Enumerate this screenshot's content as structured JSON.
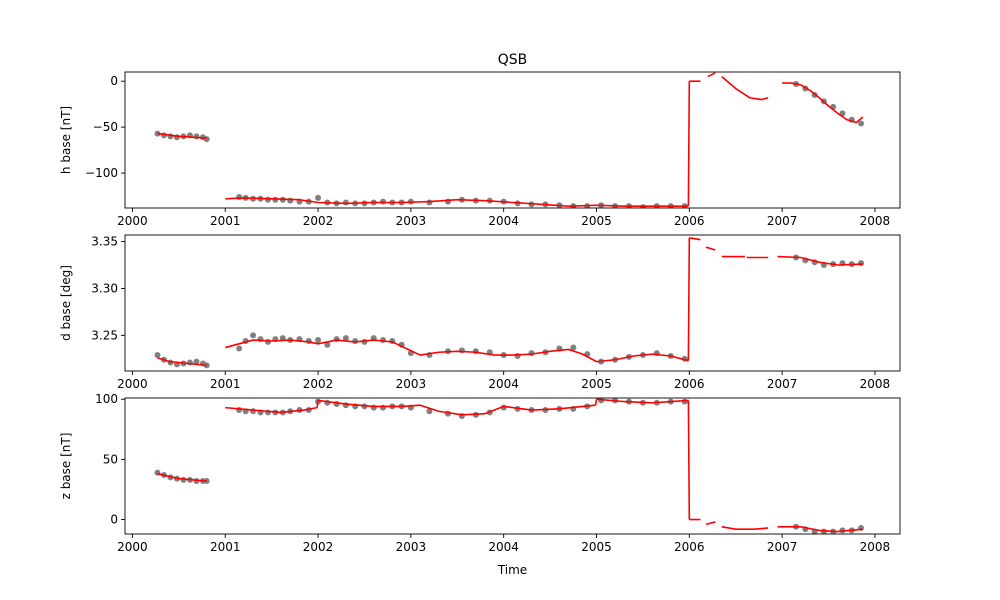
{
  "figure": {
    "title": "QSB",
    "x_axis_label": "Time"
  },
  "chart_data": [
    {
      "type": "scatter",
      "ylabel": "h base [nT]",
      "xlim": [
        1999.92,
        2008.27
      ],
      "ylim": [
        -138,
        10
      ],
      "x_ticks": [
        2000,
        2001,
        2002,
        2003,
        2004,
        2005,
        2006,
        2007,
        2008
      ],
      "x_tick_labels": [
        "2000",
        "2001",
        "2002",
        "2003",
        "2004",
        "2005",
        "2006",
        "2007",
        "2008"
      ],
      "y_ticks": [
        -100,
        -50,
        0
      ],
      "y_tick_labels": [
        "−100",
        "−50",
        "0"
      ],
      "grid": false,
      "series": [
        {
          "style": "points",
          "color": "#808080",
          "x": [
            2000.27,
            2000.34,
            2000.41,
            2000.48,
            2000.55,
            2000.62,
            2000.69,
            2000.76,
            2000.8,
            2001.15,
            2001.22,
            2001.3,
            2001.38,
            2001.46,
            2001.54,
            2001.62,
            2001.7,
            2001.8,
            2001.9,
            2002.0,
            2002.1,
            2002.2,
            2002.3,
            2002.4,
            2002.5,
            2002.6,
            2002.7,
            2002.8,
            2002.9,
            2003.0,
            2003.2,
            2003.4,
            2003.55,
            2003.7,
            2003.85,
            2004.0,
            2004.15,
            2004.3,
            2004.45,
            2004.6,
            2004.75,
            2004.9,
            2005.05,
            2005.2,
            2005.35,
            2005.5,
            2005.65,
            2005.8,
            2005.95,
            2007.15,
            2007.25,
            2007.35,
            2007.45,
            2007.55,
            2007.65,
            2007.75,
            2007.85
          ],
          "y": [
            -57,
            -59,
            -60,
            -61,
            -60,
            -59,
            -60,
            -61,
            -63,
            -126,
            -127,
            -128,
            -128,
            -129,
            -129,
            -129,
            -130,
            -131,
            -131,
            -127,
            -132,
            -133,
            -132,
            -133,
            -133,
            -132,
            -131,
            -132,
            -132,
            -131,
            -132,
            -131,
            -129,
            -130,
            -130,
            -131,
            -133,
            -134,
            -134,
            -135,
            -136,
            -136,
            -135,
            -136,
            -136,
            -137,
            -136,
            -136,
            -136,
            -3,
            -8,
            -15,
            -22,
            -28,
            -35,
            -42,
            -46
          ]
        },
        {
          "style": "line",
          "color": "#ff0000",
          "segments": [
            {
              "x": [
                2000.27,
                2000.5,
                2000.8
              ],
              "y": [
                -57,
                -60,
                -62
              ]
            },
            {
              "x": [
                2001.0,
                2001.2,
                2001.5,
                2001.8,
                2002.0,
                2002.3,
                2002.6,
                2002.9,
                2003.2,
                2003.5,
                2003.8,
                2004.1,
                2004.4,
                2004.7,
                2005.0,
                2005.3,
                2005.6,
                2005.99
              ],
              "y": [
                -128,
                -127,
                -128,
                -129,
                -132,
                -133,
                -132,
                -132,
                -131,
                -129,
                -130,
                -132,
                -134,
                -136,
                -135,
                -136,
                -136,
                -136
              ]
            },
            {
              "x": [
                2005.99,
                2006.0
              ],
              "y": [
                -136,
                0
              ]
            },
            {
              "x": [
                2006.0,
                2006.12
              ],
              "y": [
                0,
                0
              ]
            },
            {
              "x": [
                2006.2,
                2006.28
              ],
              "y": [
                5,
                9
              ]
            },
            {
              "x": [
                2006.35,
                2006.5,
                2006.65,
                2006.78,
                2006.85
              ],
              "y": [
                5,
                -8,
                -18,
                -20,
                -18
              ]
            },
            {
              "x": [
                2007.0,
                2007.1,
                2007.2,
                2007.3,
                2007.4,
                2007.5,
                2007.6,
                2007.7,
                2007.8,
                2007.87
              ],
              "y": [
                -2,
                -2,
                -4,
                -10,
                -18,
                -27,
                -35,
                -42,
                -45,
                -39
              ]
            }
          ]
        }
      ]
    },
    {
      "type": "scatter",
      "ylabel": "d base [deg]",
      "xlim": [
        1999.92,
        2008.27
      ],
      "ylim": [
        3.212,
        3.357
      ],
      "x_ticks": [
        2000,
        2001,
        2002,
        2003,
        2004,
        2005,
        2006,
        2007,
        2008
      ],
      "x_tick_labels": [
        "2000",
        "2001",
        "2002",
        "2003",
        "2004",
        "2005",
        "2006",
        "2007",
        "2008"
      ],
      "y_ticks": [
        3.25,
        3.3,
        3.35
      ],
      "y_tick_labels": [
        "3.25",
        "3.30",
        "3.35"
      ],
      "grid": false,
      "series": [
        {
          "style": "points",
          "color": "#808080",
          "x": [
            2000.27,
            2000.34,
            2000.41,
            2000.48,
            2000.55,
            2000.62,
            2000.69,
            2000.76,
            2000.8,
            2001.15,
            2001.22,
            2001.3,
            2001.38,
            2001.46,
            2001.54,
            2001.62,
            2001.7,
            2001.8,
            2001.9,
            2002.0,
            2002.1,
            2002.2,
            2002.3,
            2002.4,
            2002.5,
            2002.6,
            2002.7,
            2002.8,
            2002.9,
            2003.0,
            2003.2,
            2003.4,
            2003.55,
            2003.7,
            2003.85,
            2004.0,
            2004.15,
            2004.3,
            2004.45,
            2004.6,
            2004.75,
            2004.9,
            2005.05,
            2005.2,
            2005.35,
            2005.5,
            2005.65,
            2005.8,
            2005.95,
            2007.15,
            2007.25,
            2007.35,
            2007.45,
            2007.55,
            2007.65,
            2007.75,
            2007.85
          ],
          "y": [
            3.229,
            3.224,
            3.221,
            3.219,
            3.22,
            3.221,
            3.222,
            3.22,
            3.218,
            3.236,
            3.244,
            3.25,
            3.246,
            3.243,
            3.246,
            3.247,
            3.245,
            3.246,
            3.244,
            3.245,
            3.24,
            3.246,
            3.247,
            3.244,
            3.243,
            3.247,
            3.245,
            3.244,
            3.24,
            3.231,
            3.229,
            3.233,
            3.234,
            3.233,
            3.232,
            3.229,
            3.228,
            3.231,
            3.232,
            3.236,
            3.237,
            3.23,
            3.222,
            3.224,
            3.227,
            3.229,
            3.231,
            3.228,
            3.225,
            3.333,
            3.33,
            3.328,
            3.325,
            3.326,
            3.327,
            3.326,
            3.327
          ]
        },
        {
          "style": "line",
          "color": "#ff0000",
          "segments": [
            {
              "x": [
                2000.27,
                2000.4,
                2000.6,
                2000.8
              ],
              "y": [
                3.226,
                3.222,
                3.22,
                3.218
              ]
            },
            {
              "x": [
                2001.0,
                2001.15,
                2001.3,
                2001.5,
                2001.7,
                2001.9,
                2002.0,
                2002.2,
                2002.4,
                2002.6,
                2002.8,
                2002.95,
                2003.1,
                2003.3,
                2003.5,
                2003.7,
                2003.9,
                2004.1,
                2004.3,
                2004.5,
                2004.7,
                2004.85,
                2005.0,
                2005.2,
                2005.4,
                2005.6,
                2005.8,
                2005.99
              ],
              "y": [
                3.237,
                3.241,
                3.245,
                3.244,
                3.245,
                3.243,
                3.241,
                3.245,
                3.243,
                3.245,
                3.243,
                3.236,
                3.229,
                3.232,
                3.233,
                3.232,
                3.229,
                3.229,
                3.23,
                3.233,
                3.235,
                3.23,
                3.222,
                3.224,
                3.228,
                3.23,
                3.228,
                3.223
              ]
            },
            {
              "x": [
                2005.99,
                2006.0
              ],
              "y": [
                3.223,
                3.354
              ]
            },
            {
              "x": [
                2006.0,
                2006.12
              ],
              "y": [
                3.354,
                3.352
              ]
            },
            {
              "x": [
                2006.18,
                2006.28
              ],
              "y": [
                3.344,
                3.341
              ]
            },
            {
              "x": [
                2006.35,
                2006.6
              ],
              "y": [
                3.334,
                3.334
              ]
            },
            {
              "x": [
                2006.62,
                2006.85
              ],
              "y": [
                3.333,
                3.333
              ]
            },
            {
              "x": [
                2006.95,
                2007.2,
                2007.4,
                2007.6,
                2007.87
              ],
              "y": [
                3.334,
                3.333,
                3.328,
                3.325,
                3.326
              ]
            }
          ]
        }
      ]
    },
    {
      "type": "scatter",
      "ylabel": "z base [nT]",
      "xlim": [
        1999.92,
        2008.27
      ],
      "ylim": [
        -12,
        101
      ],
      "x_ticks": [
        2000,
        2001,
        2002,
        2003,
        2004,
        2005,
        2006,
        2007,
        2008
      ],
      "x_tick_labels": [
        "2000",
        "2001",
        "2002",
        "2003",
        "2004",
        "2005",
        "2006",
        "2007",
        "2008"
      ],
      "y_ticks": [
        0,
        50,
        100
      ],
      "y_tick_labels": [
        "0",
        "50",
        "100"
      ],
      "grid": false,
      "series": [
        {
          "style": "points",
          "color": "#808080",
          "x": [
            2000.27,
            2000.34,
            2000.41,
            2000.48,
            2000.55,
            2000.62,
            2000.69,
            2000.76,
            2000.8,
            2001.15,
            2001.22,
            2001.3,
            2001.38,
            2001.46,
            2001.54,
            2001.62,
            2001.7,
            2001.8,
            2001.9,
            2002.0,
            2002.1,
            2002.2,
            2002.3,
            2002.4,
            2002.5,
            2002.6,
            2002.7,
            2002.8,
            2002.9,
            2003.0,
            2003.2,
            2003.4,
            2003.55,
            2003.7,
            2003.85,
            2004.0,
            2004.15,
            2004.3,
            2004.45,
            2004.6,
            2004.75,
            2004.9,
            2005.05,
            2005.2,
            2005.35,
            2005.5,
            2005.65,
            2005.8,
            2005.95,
            2007.15,
            2007.25,
            2007.35,
            2007.45,
            2007.55,
            2007.65,
            2007.75,
            2007.85
          ],
          "y": [
            39,
            37,
            35,
            34,
            33,
            33,
            32,
            32,
            32,
            91,
            90,
            90,
            89,
            89,
            89,
            89,
            90,
            91,
            91,
            98,
            97,
            96,
            95,
            94,
            94,
            93,
            93,
            94,
            94,
            93,
            90,
            88,
            86,
            87,
            89,
            93,
            92,
            91,
            91,
            92,
            92,
            94,
            99,
            99,
            98,
            97,
            97,
            98,
            98,
            -6,
            -8,
            -10,
            -10,
            -10,
            -9,
            -9,
            -7
          ]
        },
        {
          "style": "line",
          "color": "#ff0000",
          "segments": [
            {
              "x": [
                2000.27,
                2000.5,
                2000.8
              ],
              "y": [
                38,
                34,
                32
              ]
            },
            {
              "x": [
                2001.0,
                2001.3,
                2001.6,
                2001.85,
                2001.99
              ],
              "y": [
                93,
                91,
                89,
                91,
                93
              ]
            },
            {
              "x": [
                2001.99,
                2002.0
              ],
              "y": [
                93,
                99
              ]
            },
            {
              "x": [
                2002.0,
                2002.3,
                2002.6,
                2002.9,
                2003.1,
                2003.3,
                2003.55,
                2003.8,
                2004.0,
                2004.3,
                2004.6,
                2004.85,
                2004.99
              ],
              "y": [
                99,
                96,
                94,
                94,
                95,
                90,
                87,
                88,
                94,
                91,
                92,
                94,
                95
              ]
            },
            {
              "x": [
                2004.99,
                2005.0
              ],
              "y": [
                95,
                100
              ]
            },
            {
              "x": [
                2005.0,
                2005.3,
                2005.6,
                2005.99
              ],
              "y": [
                100,
                98,
                97,
                99
              ]
            },
            {
              "x": [
                2005.99,
                2006.0
              ],
              "y": [
                99,
                0
              ]
            },
            {
              "x": [
                2006.0,
                2006.12
              ],
              "y": [
                0,
                0
              ]
            },
            {
              "x": [
                2006.18,
                2006.28
              ],
              "y": [
                -4,
                -2
              ]
            },
            {
              "x": [
                2006.35,
                2006.5,
                2006.7,
                2006.85
              ],
              "y": [
                -6,
                -8,
                -8,
                -7
              ]
            },
            {
              "x": [
                2006.95,
                2007.2,
                2007.4,
                2007.6,
                2007.87
              ],
              "y": [
                -6,
                -6,
                -9,
                -10,
                -8
              ]
            }
          ]
        }
      ]
    }
  ]
}
